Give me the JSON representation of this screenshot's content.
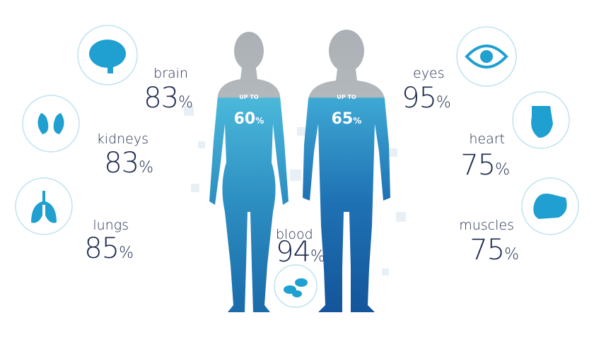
{
  "organs": [
    {
      "name": "brain",
      "value": "83%"
    },
    {
      "name": "kidneys",
      "value": "83%"
    },
    {
      "name": "lungs",
      "value": "85%"
    },
    {
      "name": "eyes",
      "value": "95%"
    },
    {
      "name": "heart",
      "value": "75%"
    },
    {
      "name": "muscles",
      "value": "75%"
    },
    {
      "name": "blood",
      "value": "94%"
    }
  ],
  "figures": [
    {
      "caption": "UP TO",
      "value": "60%"
    },
    {
      "caption": "UP TO",
      "value": "65%"
    }
  ]
}
